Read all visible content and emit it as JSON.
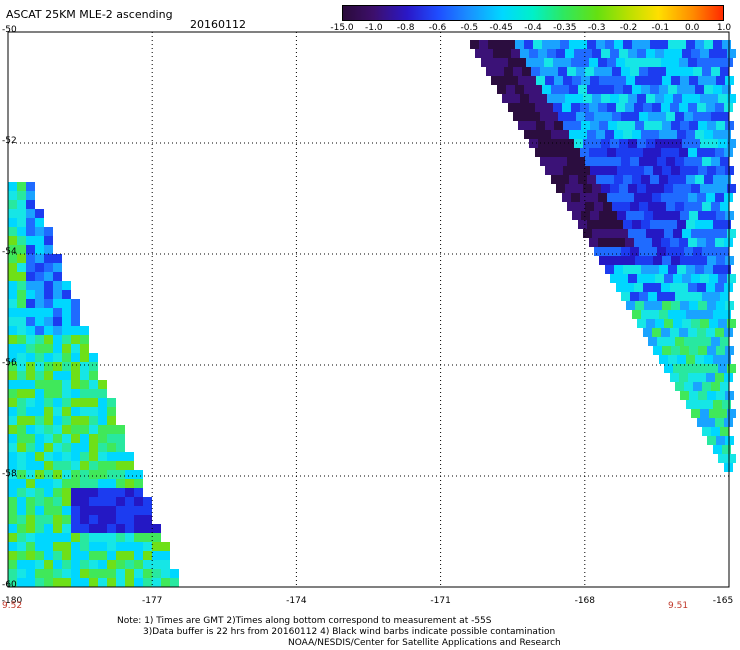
{
  "header": {
    "title": "ASCAT 25KM MLE-2 ascending",
    "date": "20160112"
  },
  "colorbar": {
    "labels": [
      "-15.0",
      "-1.0",
      "-0.8",
      "-0.6",
      "-0.5",
      "-0.45",
      "-0.4",
      "-0.35",
      "-0.3",
      "-0.2",
      "-0.1",
      "0.0",
      "1.0"
    ],
    "colors": [
      "#2a0b3a",
      "#3d0f6b",
      "#2a18c8",
      "#1f4dff",
      "#1a8fff",
      "#00d8ff",
      "#00f0c8",
      "#2ee860",
      "#66e010",
      "#b8e000",
      "#ffdf00",
      "#ff8c00",
      "#ff2a00"
    ]
  },
  "axes": {
    "lat_labels": [
      "-50",
      "-52",
      "-54",
      "-56",
      "-58",
      "-60"
    ],
    "lon_labels": [
      "-180",
      "-177",
      "-174",
      "-171",
      "-168",
      "-165"
    ],
    "time_left": "9.52",
    "time_right": "9.51"
  },
  "notes": {
    "line1": "Note: 1) Times are GMT 2)Times along bottom correspond to measurement at -55S",
    "line2": "3)Data buffer is 22 hrs from 20160112 4) Black wind barbs indicate possible contamination",
    "line3": "NOAA/NESDIS/Center for Satellite Applications and Research"
  }
}
